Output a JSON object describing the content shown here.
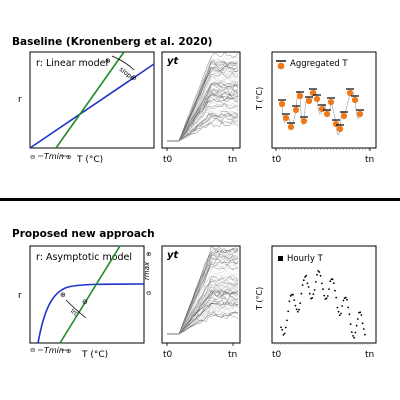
{
  "baseline": {
    "title": "Baseline (Kronenberg et al. 2020)",
    "model_label": "r: Linear model",
    "y_axis": "r",
    "x_axis_temp": "T (°C)",
    "tmin_label": "Tmin",
    "slope_label": "slope",
    "plus_glyph": "⊕",
    "minus_glyph": "⊖",
    "yt_label": "yt",
    "t0_label": "t0",
    "tn_label": "tn",
    "agg_legend": "Aggregated T",
    "agg_y_axis": "T (°C)"
  },
  "proposed": {
    "title": "Proposed new approach",
    "model_label": "r: Asymptotic model",
    "y_axis": "r",
    "x_axis_temp": "T (°C)",
    "tmin_label": "Tmin",
    "rmax_label": "rmax",
    "lrc_label": "lrc",
    "plus_glyph": "⊕",
    "minus_glyph": "⊖",
    "yt_label": "yt",
    "t0_label": "t0",
    "tn_label": "tn",
    "hourly_legend": "Hourly T",
    "hourly_y_axis": "T (°C)"
  },
  "colors": {
    "linear_blue": "#1f35c8",
    "green": "#1f8a2a",
    "orange": "#f07818",
    "gray": "#9a9a9a"
  }
}
